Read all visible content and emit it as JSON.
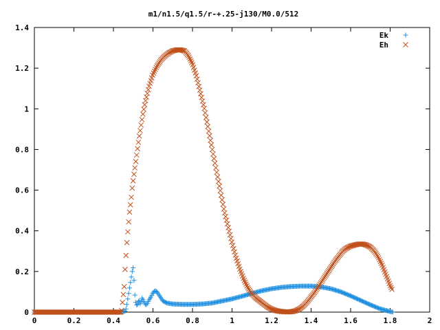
{
  "chart_data": {
    "type": "scatter",
    "title": "m1/n1.5/q1.5/r-+.25-j130/M0.0/512",
    "xlabel": "",
    "ylabel": "",
    "xlim": [
      0,
      2
    ],
    "ylim": [
      0,
      1.4
    ],
    "x_ticks": [
      0,
      0.2,
      0.4,
      0.6,
      0.8,
      1,
      1.2,
      1.4,
      1.6,
      1.8,
      2
    ],
    "x_tick_labels": [
      "0",
      "0.2",
      "0.4",
      "0.6",
      "0.8",
      "1",
      "1.2",
      "1.4",
      "1.6",
      "1.8",
      "2"
    ],
    "y_ticks": [
      0,
      0.2,
      0.4,
      0.6,
      0.8,
      1,
      1.2,
      1.4
    ],
    "y_tick_labels": [
      "0",
      "0.2",
      "0.4",
      "0.6",
      "0.8",
      "1",
      "1.2",
      "1.4"
    ],
    "grid": false,
    "legend_position": "top-right",
    "series": [
      {
        "name": "Ek",
        "marker": "plus",
        "color": "#1f8fe0",
        "x": [
          0,
          0.02,
          0.04,
          0.06,
          0.08,
          0.1,
          0.12,
          0.14,
          0.16,
          0.18,
          0.2,
          0.22,
          0.24,
          0.26,
          0.28,
          0.3,
          0.32,
          0.34,
          0.36,
          0.38,
          0.4,
          0.42,
          0.44,
          0.46,
          0.465,
          0.47,
          0.475,
          0.48,
          0.485,
          0.49,
          0.495,
          0.5,
          0.505,
          0.51,
          0.515,
          0.52,
          0.525,
          0.53,
          0.535,
          0.54,
          0.545,
          0.55,
          0.555,
          0.56,
          0.565,
          0.57,
          0.575,
          0.58,
          0.59,
          0.6,
          0.61,
          0.62,
          0.63,
          0.64,
          0.65,
          0.67,
          0.7,
          0.75,
          0.8,
          0.85,
          0.9,
          0.95,
          1.0,
          1.05,
          1.1,
          1.15,
          1.2,
          1.25,
          1.3,
          1.35,
          1.4,
          1.45,
          1.5,
          1.55,
          1.6,
          1.65,
          1.7,
          1.75,
          1.8,
          1.815
        ],
        "y": [
          0,
          0,
          0,
          0,
          0,
          0,
          0,
          0,
          0,
          0,
          0,
          0,
          0,
          0,
          0,
          0,
          0,
          0,
          0,
          0,
          0,
          0,
          0,
          0.005,
          0.02,
          0.05,
          0.08,
          0.11,
          0.14,
          0.17,
          0.2,
          0.22,
          0.14,
          0.06,
          0.04,
          0.03,
          0.05,
          0.06,
          0.04,
          0.05,
          0.07,
          0.06,
          0.05,
          0.04,
          0.035,
          0.04,
          0.05,
          0.06,
          0.075,
          0.095,
          0.105,
          0.1,
          0.085,
          0.07,
          0.055,
          0.045,
          0.04,
          0.038,
          0.038,
          0.04,
          0.045,
          0.055,
          0.065,
          0.078,
          0.092,
          0.105,
          0.115,
          0.122,
          0.126,
          0.128,
          0.128,
          0.124,
          0.115,
          0.1,
          0.08,
          0.058,
          0.036,
          0.016,
          0.003,
          0
        ]
      },
      {
        "name": "Eh",
        "marker": "cross",
        "color": "#c0501a",
        "x": [
          0,
          0.02,
          0.04,
          0.06,
          0.08,
          0.1,
          0.12,
          0.14,
          0.16,
          0.18,
          0.2,
          0.22,
          0.24,
          0.26,
          0.28,
          0.3,
          0.32,
          0.34,
          0.36,
          0.38,
          0.4,
          0.42,
          0.44,
          0.455,
          0.46,
          0.465,
          0.47,
          0.475,
          0.48,
          0.485,
          0.49,
          0.495,
          0.5,
          0.51,
          0.52,
          0.53,
          0.54,
          0.55,
          0.56,
          0.57,
          0.58,
          0.59,
          0.6,
          0.62,
          0.64,
          0.66,
          0.68,
          0.7,
          0.72,
          0.74,
          0.76,
          0.78,
          0.8,
          0.82,
          0.84,
          0.86,
          0.88,
          0.9,
          0.92,
          0.94,
          0.96,
          0.98,
          1.0,
          1.02,
          1.04,
          1.06,
          1.08,
          1.1,
          1.12,
          1.14,
          1.16,
          1.18,
          1.2,
          1.22,
          1.24,
          1.26,
          1.28,
          1.3,
          1.32,
          1.34,
          1.36,
          1.38,
          1.4,
          1.42,
          1.44,
          1.46,
          1.48,
          1.5,
          1.52,
          1.54,
          1.56,
          1.58,
          1.6,
          1.62,
          1.64,
          1.66,
          1.68,
          1.7,
          1.72,
          1.74,
          1.76,
          1.78,
          1.8,
          1.81
        ],
        "y": [
          0,
          0,
          0,
          0,
          0,
          0,
          0,
          0,
          0,
          0,
          0,
          0,
          0,
          0,
          0,
          0,
          0,
          0,
          0,
          0,
          0,
          0,
          0,
          0.13,
          0.23,
          0.3,
          0.37,
          0.42,
          0.48,
          0.52,
          0.56,
          0.61,
          0.65,
          0.72,
          0.79,
          0.86,
          0.92,
          0.98,
          1.03,
          1.07,
          1.11,
          1.14,
          1.17,
          1.21,
          1.24,
          1.26,
          1.275,
          1.285,
          1.29,
          1.29,
          1.285,
          1.26,
          1.22,
          1.16,
          1.08,
          1.0,
          0.9,
          0.8,
          0.7,
          0.6,
          0.5,
          0.42,
          0.34,
          0.27,
          0.21,
          0.16,
          0.12,
          0.09,
          0.07,
          0.055,
          0.04,
          0.025,
          0.015,
          0.008,
          0.004,
          0.002,
          0.001,
          0.002,
          0.006,
          0.015,
          0.03,
          0.05,
          0.075,
          0.1,
          0.13,
          0.16,
          0.19,
          0.22,
          0.25,
          0.275,
          0.3,
          0.315,
          0.325,
          0.33,
          0.335,
          0.335,
          0.33,
          0.32,
          0.3,
          0.27,
          0.23,
          0.18,
          0.13,
          0.11
        ]
      }
    ]
  }
}
